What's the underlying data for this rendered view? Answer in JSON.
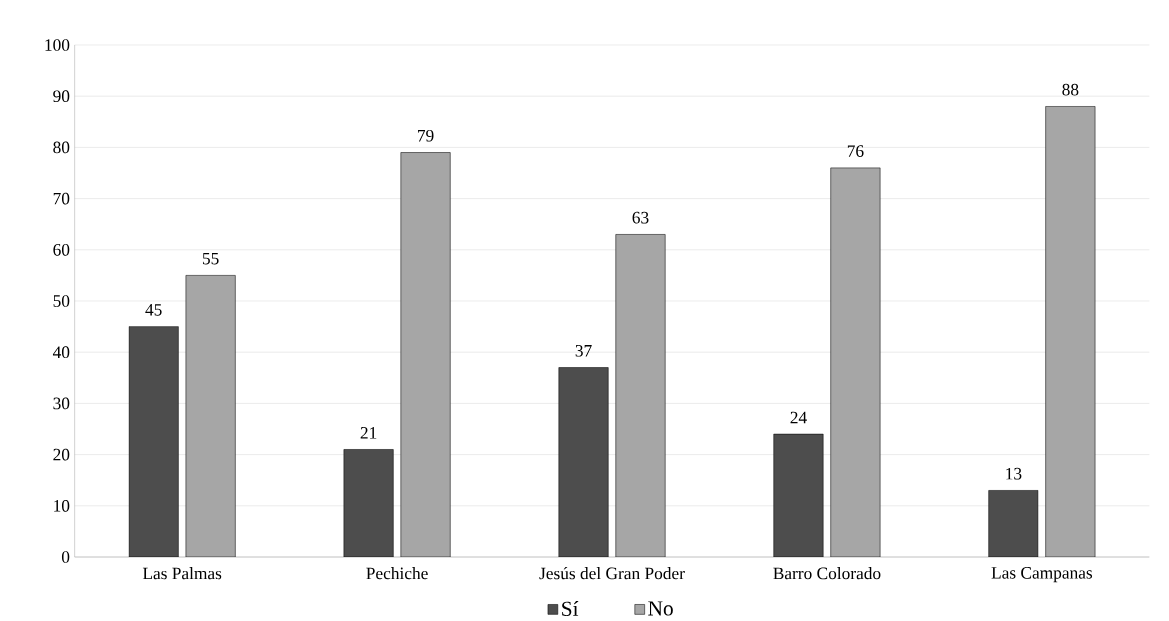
{
  "chart_data": {
    "type": "bar",
    "categories": [
      "Las Palmas",
      "Pechiche",
      "Jesús del Gran Poder",
      "Barro Colorado",
      "Las Campanas"
    ],
    "series": [
      {
        "name": "Sí",
        "color": "#4d4d4d",
        "values": [
          45,
          21,
          37,
          24,
          13
        ]
      },
      {
        "name": "No",
        "color": "#a6a6a6",
        "values": [
          55,
          79,
          63,
          76,
          88
        ]
      }
    ],
    "ylim": [
      0,
      100
    ],
    "yticks": [
      0,
      10,
      20,
      30,
      40,
      50,
      60,
      70,
      80,
      90,
      100
    ],
    "grid": "y",
    "legend": "bottom",
    "data_labels": true
  }
}
